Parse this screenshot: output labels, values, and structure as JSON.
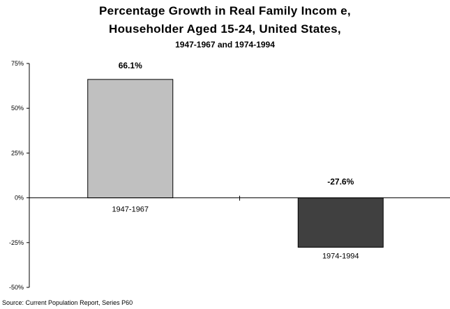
{
  "title_line1": "Percentage Growth in Real Family Incom e,",
  "title_line2": "Householder Aged 15-24, United States,",
  "title_line3": "1947-1967 and 1974-1994",
  "source": "Source: Current Population Report, Series P60",
  "chart_data": {
    "type": "bar",
    "title": "Percentage Growth in Real Family Incom e, Householder Aged 15-24, United States, 1947-1967 and 1974-1994",
    "categories": [
      "1947-1967",
      "1974-1994"
    ],
    "values": [
      66.1,
      -27.6
    ],
    "data_labels": [
      "66.1%",
      "-27.6%"
    ],
    "ylim": [
      -50,
      75
    ],
    "yticks": [
      -50,
      -25,
      0,
      25,
      50,
      75
    ],
    "ytick_labels": [
      "-50%",
      "-25%",
      "0%",
      "25%",
      "50%",
      "75%"
    ],
    "xlabel": "",
    "ylabel": "",
    "grid": false,
    "legend": "none",
    "colors": [
      "#c0c0c0",
      "#404040"
    ]
  }
}
